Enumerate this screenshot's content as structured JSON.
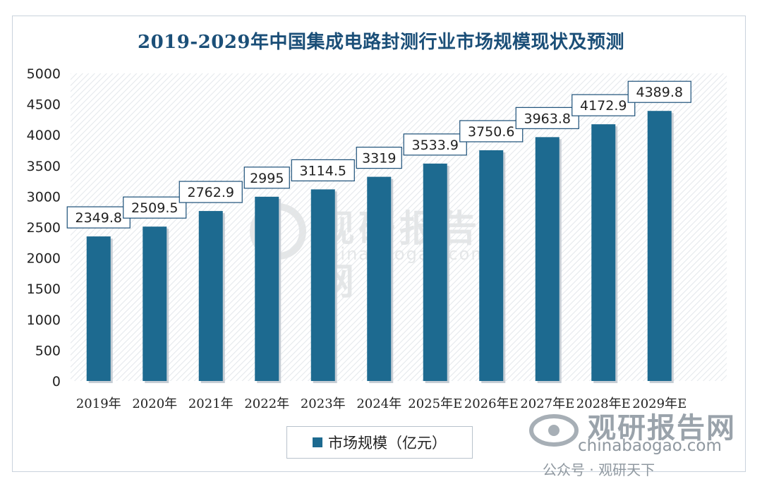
{
  "chart_data": {
    "type": "bar",
    "title": "2019-2029年中国集成电路封测行业市场规模现状及预测",
    "categories": [
      "2019年",
      "2020年",
      "2021年",
      "2022年",
      "2023年",
      "2024年",
      "2025年E",
      "2026年E",
      "2027年E",
      "2028年E",
      "2029年E"
    ],
    "series": [
      {
        "name": "市场规模（亿元）",
        "values": [
          2349.8,
          2509.5,
          2762.9,
          2995,
          3114.5,
          3319,
          3533.9,
          3750.6,
          3963.8,
          4172.9,
          4389.8
        ]
      }
    ],
    "data_labels": [
      "2349.8",
      "2509.5",
      "2762.9",
      "2995",
      "3114.5",
      "3319",
      "3533.9",
      "3750.6",
      "3963.8",
      "4172.9",
      "4389.8"
    ],
    "ylim": [
      0,
      5000
    ],
    "yticks": [
      0,
      500,
      1000,
      1500,
      2000,
      2500,
      3000,
      3500,
      4000,
      4500,
      5000
    ],
    "grid": false,
    "legend_position": "bottom",
    "bar_color": "#1d6a90"
  },
  "watermark": {
    "brand": "观研报告网",
    "url": "chinabaogao.com",
    "publisher": "公众号 · 观研天下"
  }
}
